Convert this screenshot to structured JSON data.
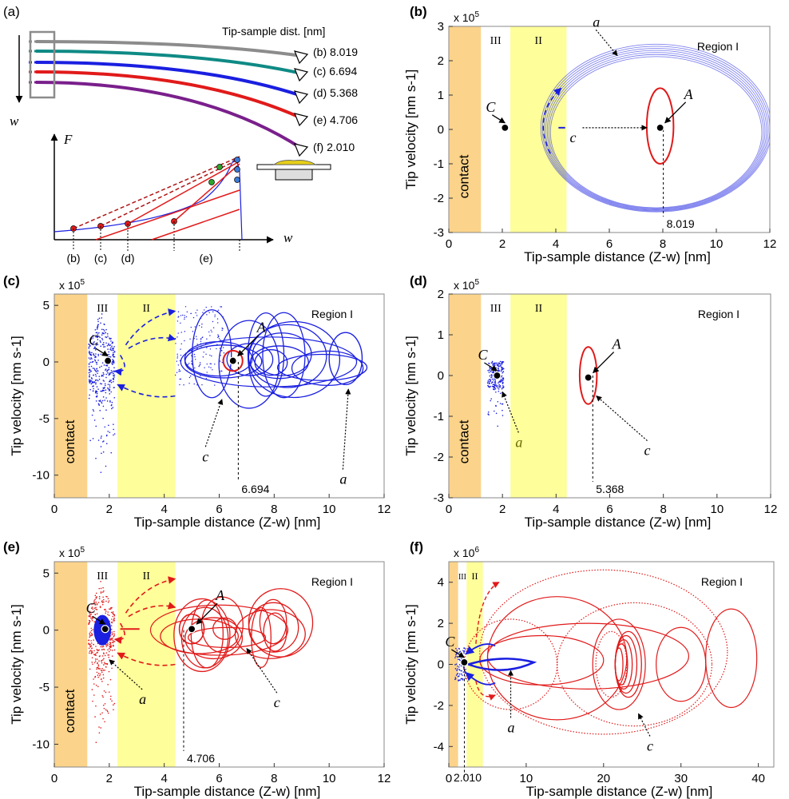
{
  "colors": {
    "contact": "#fbd38a",
    "region2": "#fefe9a",
    "blue": "#1a1fe0",
    "red": "#e11a1a",
    "purple": "#7a1f8c",
    "teal": "#0f8a85",
    "gray": "#8c8c8c",
    "darkred": "#b01515",
    "green": "#2aa62a"
  },
  "panel_a": {
    "label": "(a)",
    "header": "Tip-sample dist. [nm]",
    "deflection_label": "w",
    "force_label": "F",
    "x_label": "w",
    "cantilevers": [
      {
        "label": "(b) 8.019",
        "color": "#8c8c8c"
      },
      {
        "label": "(c) 6.694",
        "color": "#0f8a85"
      },
      {
        "label": "(d) 5.368",
        "color": "#1a1fe0"
      },
      {
        "label": "(e) 4.706",
        "color": "#e11a1a"
      },
      {
        "label": "(f) 2.010",
        "color": "#7a1f8c"
      }
    ],
    "bottom_labels": [
      "(b)",
      "(c)",
      "(d)",
      "(e)"
    ]
  },
  "chart_data": [
    {
      "id": "b",
      "type": "scatter",
      "label": "(b)",
      "xlabel": "Tip-sample distance (Z-w) [nm]",
      "ylabel": "Tip velocity [nm s-1]",
      "exponent": "x 10^5",
      "exp_base": "x 10",
      "exp_pow": "5",
      "xlim": [
        0,
        12
      ],
      "ylim": [
        -3,
        3
      ],
      "xticks": [
        0,
        2,
        4,
        6,
        8,
        10,
        12
      ],
      "yticks": [
        -3,
        -2,
        -1,
        0,
        1,
        2,
        3
      ],
      "regions": {
        "contact": [
          0,
          1.2
        ],
        "III": [
          1.2,
          2.3
        ],
        "II": [
          2.3,
          4.4
        ]
      },
      "region_labels": {
        "contact": "contact",
        "III": "III",
        "II": "II",
        "I": "Region I"
      },
      "equilibrium": 8.019,
      "points": [
        {
          "name": "C",
          "x": 2.1,
          "y": 0.05
        },
        {
          "name": "A",
          "x": 7.9,
          "y": 0.05
        }
      ],
      "annotations": [
        "a",
        "c"
      ]
    },
    {
      "id": "c",
      "type": "scatter",
      "label": "(c)",
      "xlabel": "Tip-sample distance (Z-w) [nm]",
      "ylabel": "Tip velocity [nm s-1]",
      "exponent": "x 10^5",
      "exp_base": "x 10",
      "exp_pow": "5",
      "xlim": [
        0,
        12
      ],
      "ylim": [
        -12,
        6
      ],
      "xticks": [
        0,
        2,
        4,
        6,
        8,
        10,
        12
      ],
      "yticks": [
        -10,
        -5,
        0,
        5
      ],
      "regions": {
        "contact": [
          0,
          1.2
        ],
        "III": [
          1.2,
          2.3
        ],
        "II": [
          2.3,
          4.4
        ]
      },
      "region_labels": {
        "contact": "contact",
        "III": "III",
        "II": "II",
        "I": "Region I"
      },
      "equilibrium": 6.694,
      "points": [
        {
          "name": "C",
          "x": 1.95,
          "y": 0.1
        },
        {
          "name": "A",
          "x": 6.5,
          "y": 0.1
        }
      ],
      "annotations": [
        "a",
        "c"
      ]
    },
    {
      "id": "d",
      "type": "scatter",
      "label": "(d)",
      "xlabel": "Tip-sample distance (Z-w) [nm]",
      "ylabel": "Tip velocity [nm s-1]",
      "exponent": "x 10^5",
      "exp_base": "x 10",
      "exp_pow": "5",
      "xlim": [
        0,
        12
      ],
      "ylim": [
        -3,
        2
      ],
      "xticks": [
        0,
        2,
        4,
        6,
        8,
        10,
        12
      ],
      "yticks": [
        -3,
        -2,
        -1,
        0,
        1,
        2
      ],
      "regions": {
        "contact": [
          0,
          1.2
        ],
        "III": [
          1.2,
          2.3
        ],
        "II": [
          2.3,
          4.4
        ]
      },
      "region_labels": {
        "contact": "contact",
        "III": "III",
        "II": "II",
        "I": "Region I"
      },
      "equilibrium": 5.368,
      "points": [
        {
          "name": "C",
          "x": 1.8,
          "y": 0.0
        },
        {
          "name": "A",
          "x": 5.2,
          "y": -0.05
        }
      ],
      "annotations": [
        "a",
        "c"
      ]
    },
    {
      "id": "e",
      "type": "scatter",
      "label": "(e)",
      "xlabel": "Tip-sample distance (Z-w) [nm]",
      "ylabel": "Tip velocity [nm s-1]",
      "exponent": "x 10^5",
      "exp_base": "x 10",
      "exp_pow": "5",
      "xlim": [
        0,
        12
      ],
      "ylim": [
        -12,
        6
      ],
      "xticks": [
        0,
        2,
        4,
        6,
        8,
        10,
        12
      ],
      "yticks": [
        -10,
        -5,
        0,
        5
      ],
      "regions": {
        "contact": [
          0,
          1.2
        ],
        "III": [
          1.2,
          2.3
        ],
        "II": [
          2.3,
          4.4
        ]
      },
      "region_labels": {
        "contact": "contact",
        "III": "III",
        "II": "II",
        "I": "Region I"
      },
      "equilibrium": 4.706,
      "points": [
        {
          "name": "C",
          "x": 1.85,
          "y": 0.1
        },
        {
          "name": "A",
          "x": 5.0,
          "y": 0.1
        }
      ],
      "annotations": [
        "a",
        "c"
      ]
    },
    {
      "id": "f",
      "type": "scatter",
      "label": "(f)",
      "xlabel": "Tip-sample distance (Z-w) [nm]",
      "ylabel": "Tip velocity [nm s-1]",
      "exponent": "x 10^6",
      "exp_base": "x 10",
      "exp_pow": "6",
      "xlim": [
        0,
        42
      ],
      "ylim": [
        -5,
        5
      ],
      "xticks": [
        0,
        10,
        20,
        30,
        40
      ],
      "yticks": [
        -4,
        -2,
        0,
        2,
        4
      ],
      "regions": {
        "contact": [
          0,
          1.2
        ],
        "III": [
          1.2,
          2.3
        ],
        "II": [
          2.3,
          4.4
        ]
      },
      "region_labels": {
        "contact": "",
        "III": "III",
        "II": "II",
        "I": "Region I"
      },
      "equilibrium": 2.01,
      "points": [
        {
          "name": "C",
          "x": 2.0,
          "y": 0.1
        }
      ],
      "annotations": [
        "a",
        "c"
      ]
    }
  ]
}
